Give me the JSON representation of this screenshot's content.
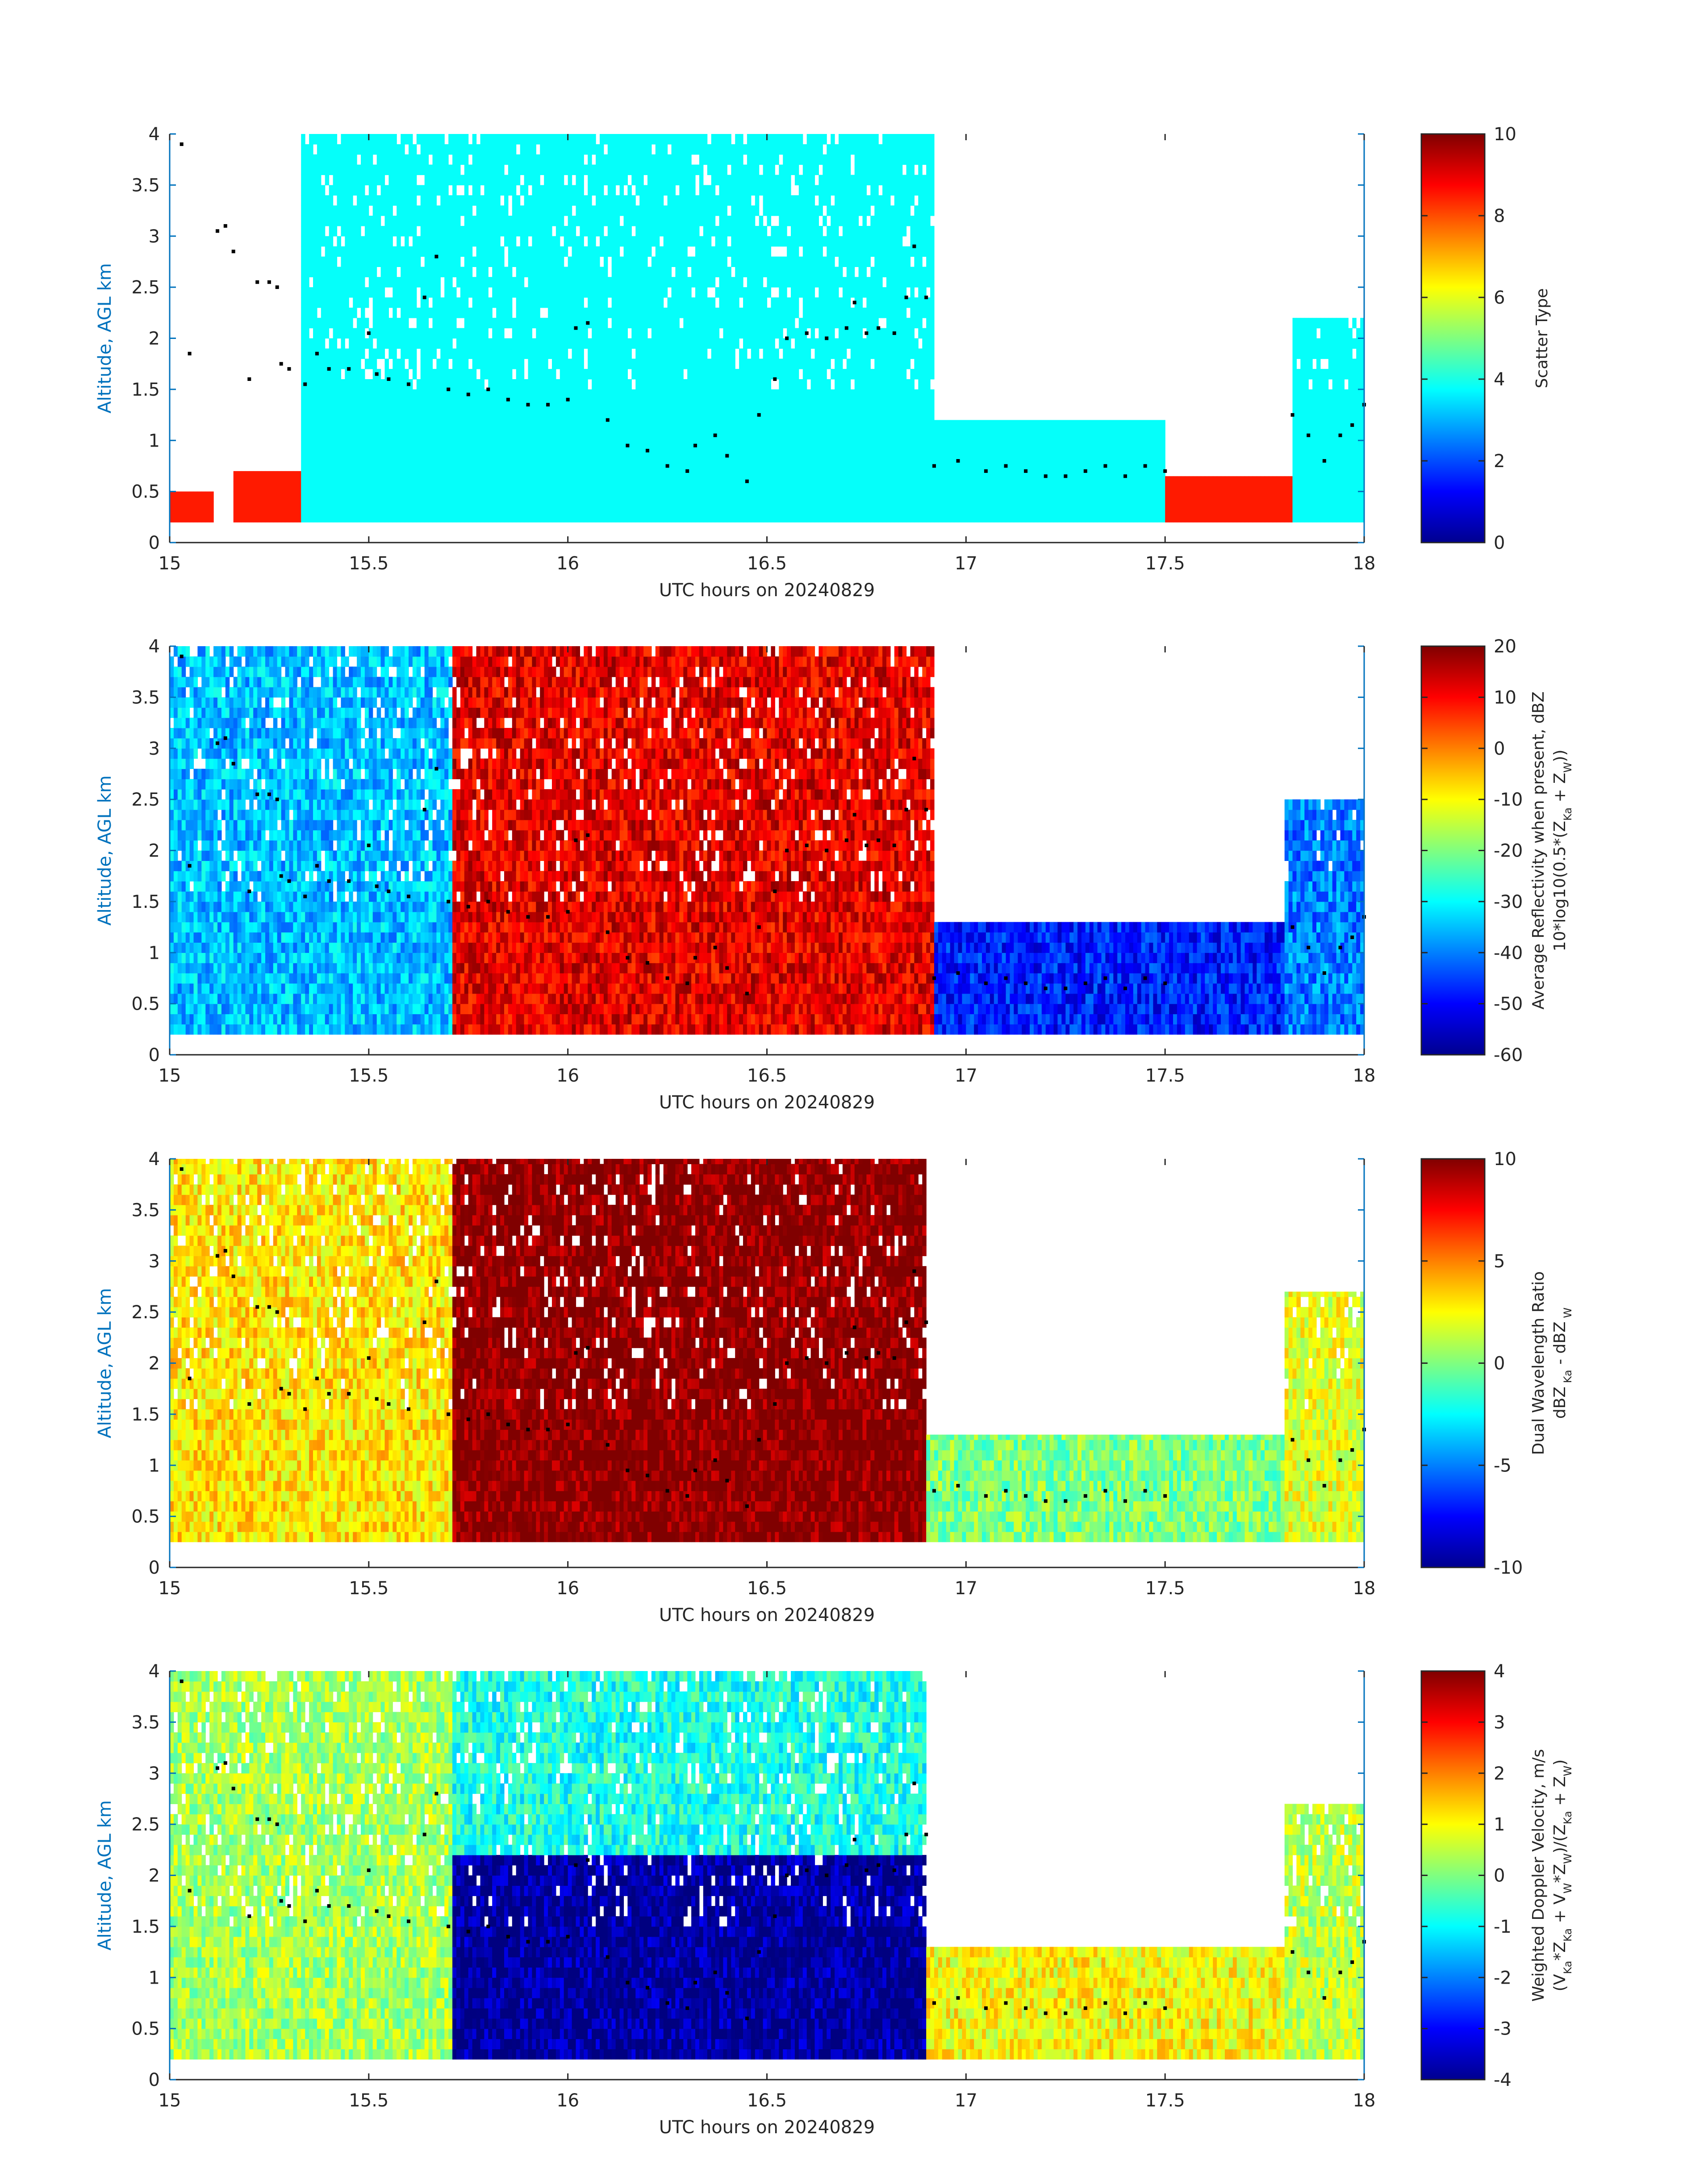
{
  "figure": {
    "x_ticks": [
      "15",
      "15.5",
      "16",
      "16.5",
      "17",
      "17.5",
      "18"
    ],
    "y_ticks": [
      "0",
      "0.5",
      "1",
      "1.5",
      "2",
      "2.5",
      "3",
      "3.5",
      "4"
    ]
  },
  "panels": [
    {
      "id": "scatter-type",
      "xlabel": "UTC hours on 20240829",
      "ylabel": "Altitude, AGL km",
      "colorbar": {
        "line1": "Scatter Type",
        "line2": "",
        "line2_parts": [],
        "ticks": [
          "0",
          "2",
          "4",
          "6",
          "8",
          "10"
        ]
      }
    },
    {
      "id": "reflectivity",
      "xlabel": "UTC hours on 20240829",
      "ylabel": "Altitude, AGL km",
      "colorbar": {
        "line1": "Average Reflectivity when present, dBZ",
        "line2": "10*log10(0.5*(ZKa + ZW))",
        "line2_parts": [
          {
            "t": "10*log10(0.5*(Z",
            "sub": false
          },
          {
            "t": "Ka",
            "sub": true
          },
          {
            "t": " + Z",
            "sub": false
          },
          {
            "t": "W",
            "sub": true
          },
          {
            "t": "))",
            "sub": false
          }
        ],
        "ticks": [
          "-60",
          "-50",
          "-40",
          "-30",
          "-20",
          "-10",
          "0",
          "10",
          "20"
        ]
      }
    },
    {
      "id": "dwr",
      "xlabel": "UTC hours on 20240829",
      "ylabel": "Altitude, AGL km",
      "colorbar": {
        "line1": "Dual Wavelength Ratio",
        "line2": "dBZ Ka - dBZ W",
        "line2_parts": [
          {
            "t": "dBZ",
            "sub": false
          },
          {
            "t": " Ka",
            "sub": true
          },
          {
            "t": " - dBZ",
            "sub": false
          },
          {
            "t": " W",
            "sub": true
          }
        ],
        "ticks": [
          "-10",
          "-5",
          "0",
          "5",
          "10"
        ]
      }
    },
    {
      "id": "doppler",
      "xlabel": "UTC hours on 20240829",
      "ylabel": "Altitude, AGL km",
      "colorbar": {
        "line1": "Weighted Doppler Velocity, m/s",
        "line2": "(VKa*ZKa + VW*ZW)/(ZKa + ZW)",
        "line2_parts": [
          {
            "t": "(V",
            "sub": false
          },
          {
            "t": "Ka",
            "sub": true
          },
          {
            "t": "*Z",
            "sub": false
          },
          {
            "t": "Ka",
            "sub": true
          },
          {
            "t": " + V",
            "sub": false
          },
          {
            "t": "W",
            "sub": true
          },
          {
            "t": "*Z",
            "sub": false
          },
          {
            "t": "W",
            "sub": true
          },
          {
            "t": ")/(Z",
            "sub": false
          },
          {
            "t": "Ka",
            "sub": true
          },
          {
            "t": " + Z",
            "sub": false
          },
          {
            "t": "W",
            "sub": true
          },
          {
            "t": ")",
            "sub": false
          }
        ],
        "ticks": [
          "-4",
          "-3",
          "-2",
          "-1",
          "0",
          "1",
          "2",
          "3",
          "4"
        ]
      }
    }
  ],
  "chart_data": [
    {
      "type": "heatmap",
      "title": "",
      "xlabel": "UTC hours on 20240829",
      "ylabel": "Altitude, AGL km",
      "xlim": [
        15,
        18
      ],
      "ylim": [
        0,
        4
      ],
      "colorbar_label": "Scatter Type",
      "clim": [
        0,
        10
      ],
      "colormap": "jet",
      "regions": [
        {
          "x": [
            15.0,
            15.1
          ],
          "y": [
            0.2,
            0.5
          ],
          "value": 8.5
        },
        {
          "x": [
            15.15,
            15.32
          ],
          "y": [
            0.2,
            0.65
          ],
          "value": 8.5
        },
        {
          "x": [
            15.32,
            16.92
          ],
          "y": [
            0.2,
            4.0
          ],
          "value": 3.8
        },
        {
          "x": [
            16.92,
            17.5
          ],
          "y": [
            0.2,
            1.2
          ],
          "value": 3.8
        },
        {
          "x": [
            17.5,
            17.82
          ],
          "y": [
            0.2,
            0.65
          ],
          "value": 8.5
        },
        {
          "x": [
            17.82,
            18.0
          ],
          "y": [
            0.2,
            2.2
          ],
          "value": 3.8
        }
      ],
      "overlay": {
        "name": "",
        "type": "scatter",
        "color": "#000000"
      }
    },
    {
      "type": "heatmap",
      "title": "",
      "xlabel": "UTC hours on 20240829",
      "ylabel": "Altitude, AGL km",
      "xlim": [
        15,
        18
      ],
      "ylim": [
        0,
        4
      ],
      "colorbar_label": "Average Reflectivity when present, dBZ 10*log10(0.5*(ZKa + ZW))",
      "clim": [
        -60,
        20
      ],
      "colormap": "jet",
      "regions": [
        {
          "x": [
            15.0,
            15.7
          ],
          "y": [
            0.2,
            4.0
          ],
          "value": -35
        },
        {
          "x": [
            15.7,
            16.92
          ],
          "y": [
            0.2,
            4.0
          ],
          "value": 12
        },
        {
          "x": [
            16.92,
            17.8
          ],
          "y": [
            0.2,
            1.3
          ],
          "value": -48
        },
        {
          "x": [
            17.8,
            18.0
          ],
          "y": [
            0.2,
            2.5
          ],
          "value": -40
        }
      ],
      "overlay": {
        "name": "",
        "type": "scatter",
        "color": "#000000"
      }
    },
    {
      "type": "heatmap",
      "title": "",
      "xlabel": "UTC hours on 20240829",
      "ylabel": "Altitude, AGL km",
      "xlim": [
        15,
        18
      ],
      "ylim": [
        0,
        4
      ],
      "colorbar_label": "Dual Wavelength Ratio dBZ Ka - dBZ W",
      "clim": [
        -10,
        10
      ],
      "colormap": "jet",
      "regions": [
        {
          "x": [
            15.0,
            15.7
          ],
          "y": [
            0.25,
            4.0
          ],
          "value": 3
        },
        {
          "x": [
            15.7,
            16.9
          ],
          "y": [
            0.25,
            4.0
          ],
          "value": 10
        },
        {
          "x": [
            16.9,
            17.8
          ],
          "y": [
            0.25,
            1.3
          ],
          "value": 0
        },
        {
          "x": [
            17.8,
            18.0
          ],
          "y": [
            0.25,
            2.7
          ],
          "value": 2
        }
      ],
      "overlay": {
        "name": "",
        "type": "scatter",
        "color": "#000000"
      }
    },
    {
      "type": "heatmap",
      "title": "",
      "xlabel": "UTC hours on 20240829",
      "ylabel": "Altitude, AGL km",
      "xlim": [
        15,
        18
      ],
      "ylim": [
        0,
        4
      ],
      "colorbar_label": "Weighted Doppler Velocity, m/s (VKa*ZKa + VW*ZW)/(ZKa + ZW)",
      "clim": [
        -4,
        4
      ],
      "colormap": "jet",
      "regions": [
        {
          "x": [
            15.0,
            15.7
          ],
          "y": [
            0.2,
            4.0
          ],
          "value": 0.3
        },
        {
          "x": [
            15.7,
            16.9
          ],
          "y": [
            2.2,
            4.0
          ],
          "value": -0.8
        },
        {
          "x": [
            15.7,
            16.9
          ],
          "y": [
            0.2,
            2.2
          ],
          "value": -3.8
        },
        {
          "x": [
            16.9,
            17.8
          ],
          "y": [
            0.2,
            1.3
          ],
          "value": 1.0
        },
        {
          "x": [
            17.8,
            18.0
          ],
          "y": [
            0.2,
            2.7
          ],
          "value": 0.5
        }
      ],
      "overlay": {
        "name": "",
        "type": "scatter",
        "color": "#000000"
      }
    }
  ]
}
